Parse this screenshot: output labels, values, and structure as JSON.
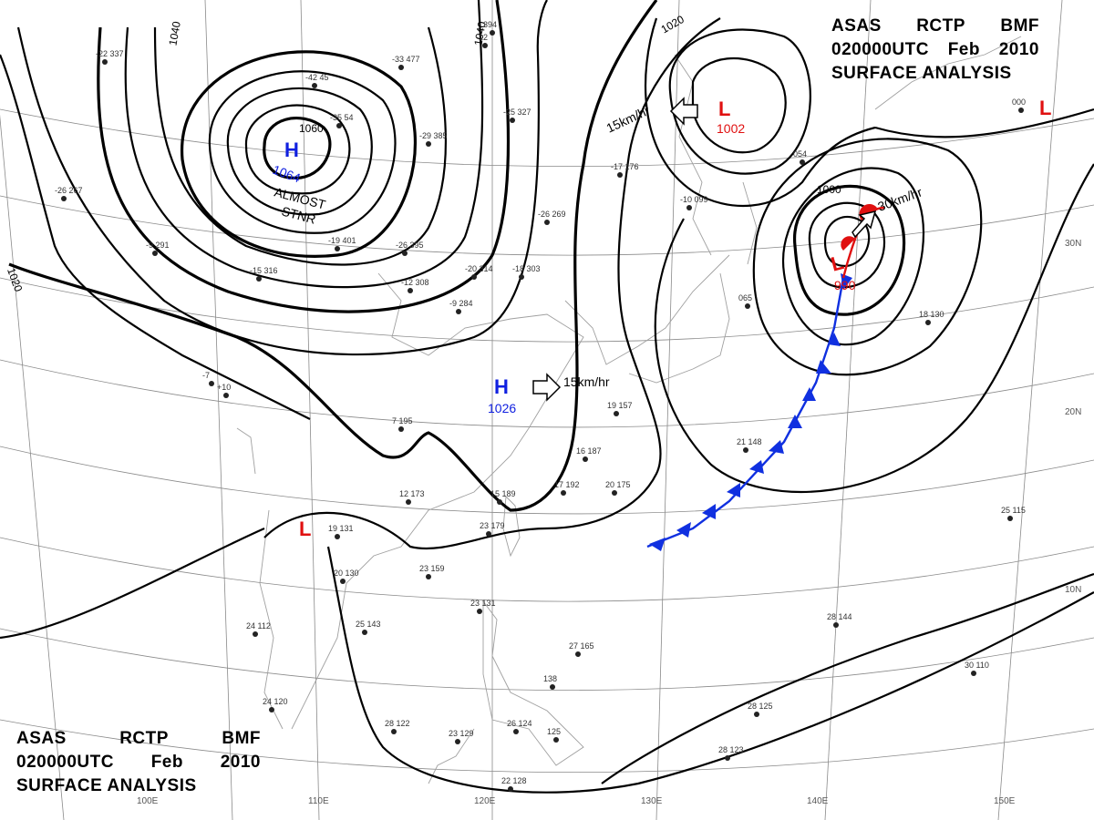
{
  "titles": {
    "top_right": {
      "line1": [
        "ASAS",
        "RCTP",
        "BMF"
      ],
      "line2": [
        "020000UTC",
        "Feb",
        "2010"
      ],
      "line3": "SURFACE  ANALYSIS"
    },
    "bottom_left": {
      "line1": [
        "ASAS",
        "RCTP",
        "BMF"
      ],
      "line2": [
        "020000UTC",
        "Feb",
        "2010"
      ],
      "line3": "SURFACE  ANALYSIS"
    }
  },
  "grid_labels": {
    "longitudes": [
      "100E",
      "110E",
      "120E",
      "130E",
      "140E",
      "150E"
    ],
    "latitudes": [
      "30N",
      "20N",
      "10N"
    ]
  },
  "isobar_labels": [
    "1040",
    "1040",
    "1020",
    "1020",
    "1060",
    "1000",
    "1020"
  ],
  "pressure_centers": [
    {
      "kind": "H",
      "value": "1064",
      "note": "ALMOST STNR"
    },
    {
      "kind": "H",
      "value": "1026",
      "motion": "15km/hr"
    },
    {
      "kind": "L",
      "value": "1002",
      "motion": "15km/hr"
    },
    {
      "kind": "L",
      "value": "990",
      "motion": "30km/hr"
    },
    {
      "kind": "L",
      "value": ""
    },
    {
      "kind": "L",
      "value": ""
    }
  ],
  "note_lines": [
    "ALMOST",
    "STNR"
  ],
  "station_sample": [
    "-22 337",
    "-35 54",
    "-42 45",
    "-33 477",
    "-29 385",
    "-25 327",
    "394",
    "-12",
    "-26 267",
    "-9 291",
    "-15 316",
    "-19 401",
    "-26 395",
    "-20 314",
    "-18 303",
    "-12 308",
    "-9 284",
    "-26 269",
    "-17 176",
    "-10 099",
    "-7",
    "+10",
    "12 173",
    "7 195",
    "15 189",
    "16 187",
    "17 192",
    "20 175",
    "23 159",
    "19 131",
    "20 130",
    "25 143",
    "24 112",
    "24 120",
    "28 122",
    "23 129",
    "26 124",
    "22 128",
    "23 131",
    "27 165",
    "138",
    "125",
    "28 144",
    "28 125",
    "28 123",
    "30 110",
    "25 115",
    "23 179",
    "18 130",
    "21 148",
    "19 157",
    "054",
    "065",
    "000"
  ],
  "colors": {
    "high": "#1020e0",
    "low": "#e01010",
    "cold_front": "#1030e0",
    "warm_front": "#e01010",
    "isobar": "#000000",
    "grid": "#8a8a8a"
  }
}
